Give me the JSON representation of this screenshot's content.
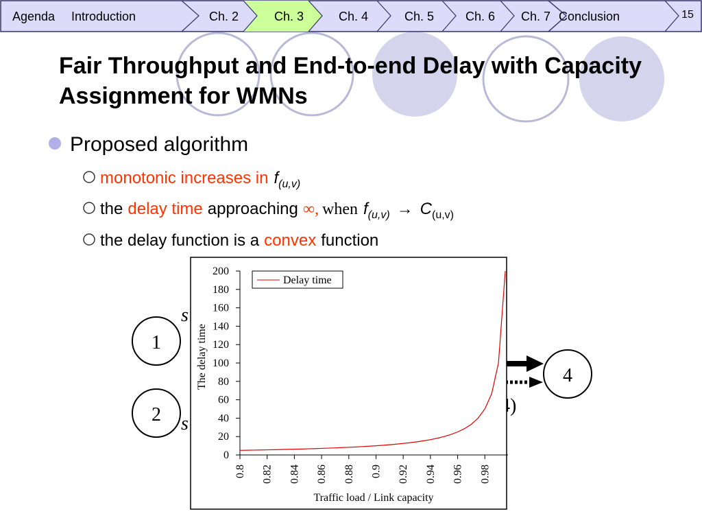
{
  "nav": {
    "items": [
      "Agenda",
      "Introduction",
      "Ch. 2",
      "Ch. 3",
      "Ch. 4",
      "Ch. 5",
      "Ch. 6",
      "Ch. 7",
      "Conclusion"
    ],
    "page": "15"
  },
  "title": "Fair Throughput and End-to-end Delay with Capacity Assignment for WMNs",
  "bullet": "Proposed algorithm",
  "sub_bullets": [
    [
      "monotonic increases in",
      "f",
      "(u,v)"
    ],
    [
      "the",
      "delay time",
      "approaching",
      "∞,",
      "when",
      "f",
      "(u,v)",
      "→",
      "C",
      "(u,v)"
    ],
    [
      "the delay function is a",
      "convex",
      "function"
    ]
  ],
  "diagram": {
    "nodes": [
      "1",
      "2",
      "4"
    ],
    "fragments": [
      "s",
      "s",
      "4)"
    ]
  },
  "chart_data": {
    "type": "line",
    "xlabel": "Traffic load / Link capacity",
    "ylabel": "The delay time",
    "x": [
      0.8,
      0.805,
      0.81,
      0.815,
      0.82,
      0.825,
      0.83,
      0.835,
      0.84,
      0.845,
      0.85,
      0.855,
      0.86,
      0.865,
      0.87,
      0.875,
      0.88,
      0.885,
      0.89,
      0.895,
      0.9,
      0.905,
      0.91,
      0.915,
      0.92,
      0.925,
      0.93,
      0.935,
      0.94,
      0.945,
      0.95,
      0.955,
      0.96,
      0.965,
      0.97,
      0.975,
      0.98,
      0.985,
      0.99,
      0.995
    ],
    "series": [
      {
        "name": "Delay time",
        "color": "#e00000",
        "values": [
          5,
          5.13,
          5.26,
          5.41,
          5.56,
          5.71,
          5.88,
          6.06,
          6.25,
          6.45,
          6.67,
          6.9,
          7.14,
          7.41,
          7.69,
          8,
          8.33,
          8.7,
          9.09,
          9.52,
          10,
          10.53,
          11.11,
          11.76,
          12.5,
          13.33,
          14.29,
          15.38,
          16.67,
          18.18,
          20,
          22.22,
          25,
          28.57,
          33.33,
          40,
          50,
          66.67,
          100,
          200
        ]
      }
    ],
    "xlim": [
      0.8,
      0.997
    ],
    "xticks": [
      0.8,
      0.82,
      0.84,
      0.86,
      0.88,
      0.9,
      0.92,
      0.94,
      0.96,
      0.98
    ],
    "ylim": [
      0,
      200
    ],
    "yticks": [
      0,
      20,
      40,
      60,
      80,
      100,
      120,
      140,
      160,
      180,
      200
    ],
    "grid": false,
    "legend": "upper left"
  }
}
